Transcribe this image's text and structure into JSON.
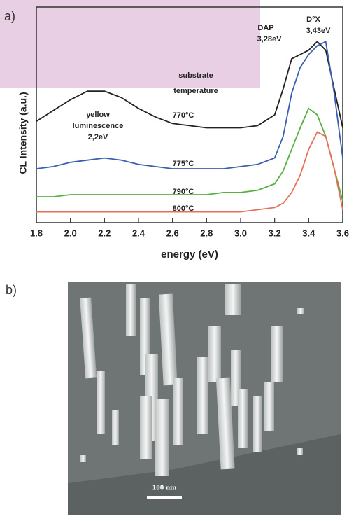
{
  "chart_data": {
    "type": "line",
    "panel_label": "a)",
    "y_label": "CL Intensity (a.u.)",
    "x_label": "energy (eV)",
    "x": [
      1.8,
      1.9,
      2.0,
      2.1,
      2.2,
      2.3,
      2.4,
      2.5,
      2.6,
      2.7,
      2.8,
      2.9,
      3.0,
      3.1,
      3.2,
      3.25,
      3.3,
      3.35,
      3.4,
      3.45,
      3.5,
      3.55,
      3.6
    ],
    "series": [
      {
        "name": "770°C",
        "color": "#222222",
        "values": [
          47,
          52,
          57,
          61,
          61,
          58,
          53,
          49,
          46,
          45,
          44,
          44,
          44,
          45,
          50,
          62,
          76,
          78,
          80,
          84,
          80,
          62,
          44
        ]
      },
      {
        "name": "775°C",
        "color": "#3b5fb0",
        "values": [
          25,
          26,
          28,
          29,
          30,
          29,
          27,
          26,
          25,
          25,
          25,
          25,
          26,
          27,
          30,
          40,
          60,
          72,
          78,
          82,
          84,
          60,
          30
        ]
      },
      {
        "name": "790°C",
        "color": "#55b040",
        "values": [
          12,
          12,
          13,
          13,
          13,
          13,
          13,
          13,
          13,
          13,
          13,
          14,
          14,
          15,
          18,
          24,
          34,
          44,
          53,
          50,
          40,
          25,
          10
        ]
      },
      {
        "name": "800°C",
        "color": "#e8705a",
        "values": [
          5,
          5,
          5,
          5,
          5,
          5,
          5,
          5,
          5,
          5,
          5,
          5,
          5,
          6,
          7,
          9,
          14,
          22,
          34,
          42,
          40,
          25,
          6
        ]
      }
    ],
    "annotations": [
      [
        "yellow",
        "luminescence",
        "2,2eV"
      ],
      [
        "substrate",
        "temperature"
      ],
      [
        "DAP",
        "3,28eV"
      ],
      [
        "D°X",
        "3,43eV"
      ]
    ],
    "xlim": [
      1.8,
      3.6
    ],
    "ylim": [
      0,
      100
    ],
    "xticks": [
      1.8,
      {
        "value": 2,
        "label": "2.0"
      },
      2.2,
      2.4,
      2.6,
      2.8,
      {
        "value": 3,
        "label": "3.0"
      },
      3.2,
      3.4,
      3.6
    ]
  },
  "panel_b": {
    "label": "b)",
    "scale_bar": "100 nm"
  }
}
